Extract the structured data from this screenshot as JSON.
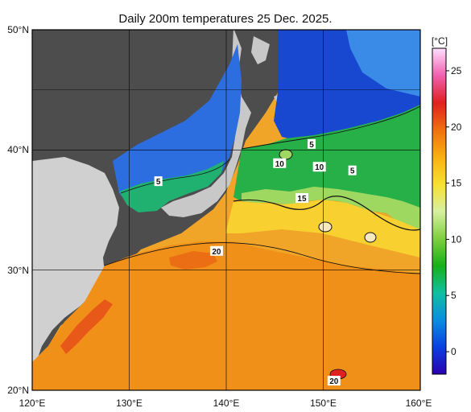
{
  "title": "Daily 200m temperatures 25 Dec. 2025.",
  "axes": {
    "lat_labels": [
      "50°N",
      "40°N",
      "30°N",
      "20°N"
    ],
    "lon_labels": [
      "120°E",
      "130°E",
      "140°E",
      "150°E",
      "160°E"
    ],
    "lon_range": [
      120,
      160
    ],
    "lat_range": [
      20,
      50
    ]
  },
  "colorbar": {
    "unit": "[°C]",
    "ticks": [
      "25",
      "20",
      "15",
      "10",
      "5",
      "0"
    ],
    "range": [
      -2,
      27
    ],
    "colors": [
      "#2a00b0",
      "#0a40e0",
      "#0a8ee0",
      "#10c0a0",
      "#18b018",
      "#80d040",
      "#d8f0a0",
      "#f8e030",
      "#f8b010",
      "#f07010",
      "#e02020",
      "#f060b0",
      "#ffe0ff"
    ]
  },
  "contour_labels": [
    {
      "text": "5",
      "lon": 133.0,
      "lat": 37.4
    },
    {
      "text": "5",
      "lon": 148.8,
      "lat": 40.5
    },
    {
      "text": "5",
      "lon": 153.0,
      "lat": 38.3
    },
    {
      "text": "10",
      "lon": 145.5,
      "lat": 38.9
    },
    {
      "text": "10",
      "lon": 149.6,
      "lat": 38.6
    },
    {
      "text": "15",
      "lon": 147.8,
      "lat": 36.0
    },
    {
      "text": "20",
      "lon": 139.0,
      "lat": 31.6
    },
    {
      "text": "20",
      "lon": 151.1,
      "lat": 20.8
    }
  ],
  "colors": {
    "land": "#d0d0d0",
    "land_outside_data": "#4d4d4d",
    "cold": "#1a50d8",
    "cool_green": "#20b050",
    "warm": "#f0a020"
  }
}
